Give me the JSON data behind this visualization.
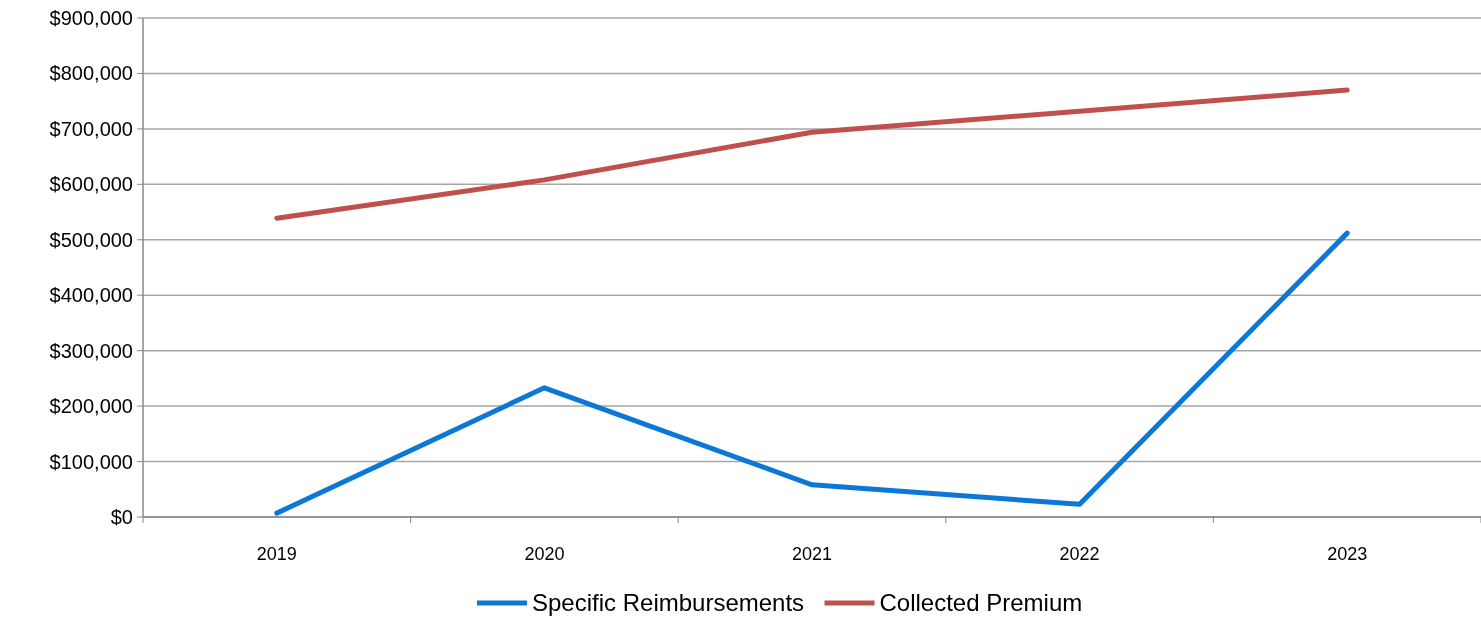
{
  "chart_data": {
    "type": "line",
    "categories": [
      "2019",
      "2020",
      "2021",
      "2022",
      "2023"
    ],
    "series": [
      {
        "name": "Specific Reimbursements",
        "color": "#0b78d8",
        "values": [
          7000,
          233000,
          58000,
          23000,
          512000
        ]
      },
      {
        "name": "Collected Premium",
        "color": "#c0504d",
        "values": [
          539000,
          608000,
          694000,
          732000,
          770000
        ]
      }
    ],
    "ylim": [
      0,
      900000
    ],
    "yticks": [
      {
        "value": 0,
        "label": "$0"
      },
      {
        "value": 100000,
        "label": "$100,000"
      },
      {
        "value": 200000,
        "label": "$200,000"
      },
      {
        "value": 300000,
        "label": "$300,000"
      },
      {
        "value": 400000,
        "label": "$400,000"
      },
      {
        "value": 500000,
        "label": "$500,000"
      },
      {
        "value": 600000,
        "label": "$600,000"
      },
      {
        "value": 700000,
        "label": "$700,000"
      },
      {
        "value": 800000,
        "label": "$800,000"
      },
      {
        "value": 900000,
        "label": "$900,000"
      }
    ],
    "grid": "y",
    "legend": "bottom",
    "marker": "none",
    "line_style": "solid"
  }
}
